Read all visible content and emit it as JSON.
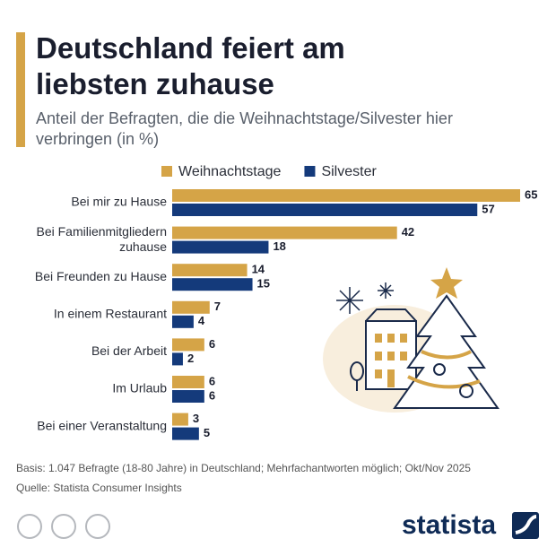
{
  "chart_data": {
    "type": "bar",
    "orientation": "horizontal",
    "title": "Deutschland feiert am liebsten zuhause",
    "subtitle": "Anteil der Befragten, die die Weihnachtstage/Silvester hier verbringen (in %)",
    "categories": [
      "Bei mir zu Hause",
      "Bei Familienmitgliedern zuhause",
      "Bei Freunden zu Hause",
      "In einem Restaurant",
      "Bei der Arbeit",
      "Im Urlaub",
      "Bei einer Veranstaltung"
    ],
    "series": [
      {
        "name": "Weihnachtstage",
        "color": "#d5a447",
        "values": [
          65,
          42,
          14,
          7,
          6,
          6,
          3
        ]
      },
      {
        "name": "Silvester",
        "color": "#143a7b",
        "values": [
          57,
          18,
          15,
          4,
          2,
          6,
          5
        ]
      }
    ],
    "note": "Basis: 1.047 Befragte (18-80 Jahre) in Deutschland; Mehrfachantworten möglich; Okt/Nov 2025",
    "source": "Quelle: Statista Consumer Insights",
    "brand": "statista"
  }
}
